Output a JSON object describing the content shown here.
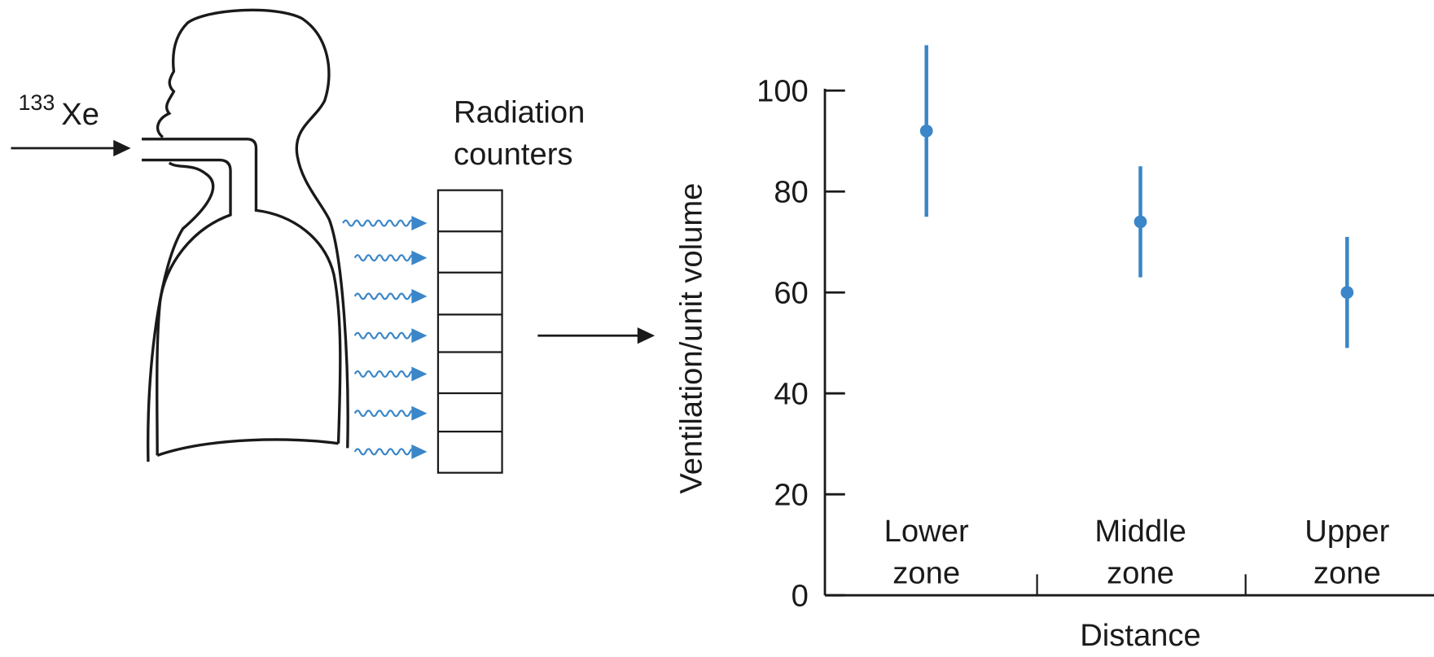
{
  "diagram": {
    "isotope_mass": "133",
    "isotope_symbol": "Xe",
    "counter_label": "Radiation counters"
  },
  "chart_data": {
    "type": "errorbar",
    "y_label": "Ventilation/unit volume",
    "x_label": "Distance",
    "categories": [
      "Lower zone",
      "Middle zone",
      "Upper zone"
    ],
    "values": [
      92,
      74,
      60
    ],
    "errors": [
      17,
      11,
      11
    ],
    "color": "#3a86c8",
    "ylim": [
      0,
      100
    ],
    "yticks": [
      0,
      20,
      40,
      60,
      80,
      100
    ]
  }
}
